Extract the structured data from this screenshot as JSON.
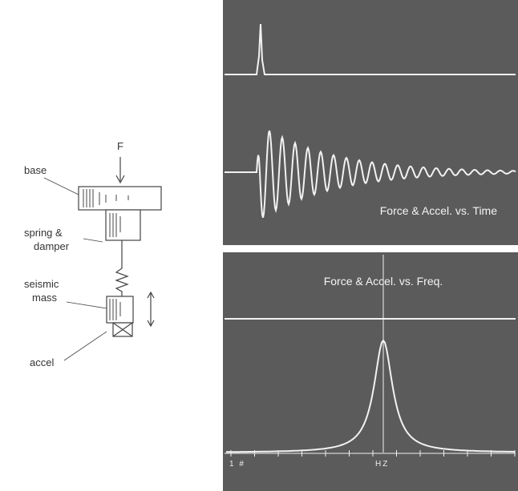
{
  "diagram": {
    "force_label": "F",
    "base_label": "base",
    "spring_label": [
      "spring &",
      "damper"
    ],
    "mass_label": [
      "seismic",
      "mass"
    ],
    "accel_label": "accel"
  },
  "screens": {
    "time_title": "Force & Accel. vs. Time",
    "freq_title": "Force & Accel. vs. Freq.",
    "freq_axis_labels": [
      "1 #",
      "HZ"
    ]
  }
}
